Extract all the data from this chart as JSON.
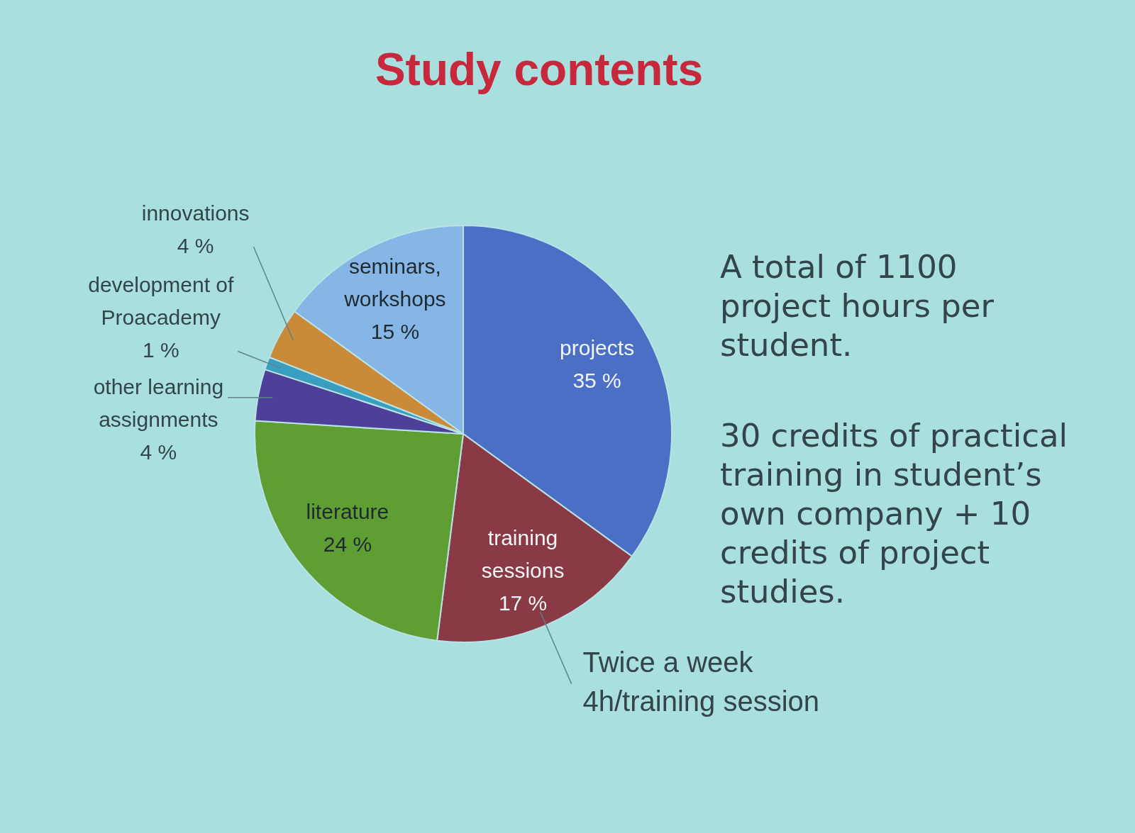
{
  "chart_data": {
    "type": "pie",
    "title": "Study contents",
    "categories": [
      "projects",
      "training sessions",
      "literature",
      "other learning assignments",
      "development of Proacademy",
      "innovations",
      "seminars, workshops"
    ],
    "values": [
      35,
      17,
      24,
      4,
      1,
      4,
      15
    ],
    "colors": [
      "#4a6fc4",
      "#8a3a44",
      "#5e9e32",
      "#4e3f99",
      "#3a9ec0",
      "#c98a3a",
      "#86b6e6"
    ],
    "value_labels": [
      "35 %",
      "17 %",
      "24 %",
      "4 %",
      "1 %",
      "4 %",
      "15 %"
    ],
    "annotations": [
      "A total of 1100 project hours per student.",
      "30 credits of practical training in student’s own company + 10 credits of project studies.",
      {
        "text": "Twice a week 4h/training session",
        "x": "training sessions"
      }
    ]
  }
}
